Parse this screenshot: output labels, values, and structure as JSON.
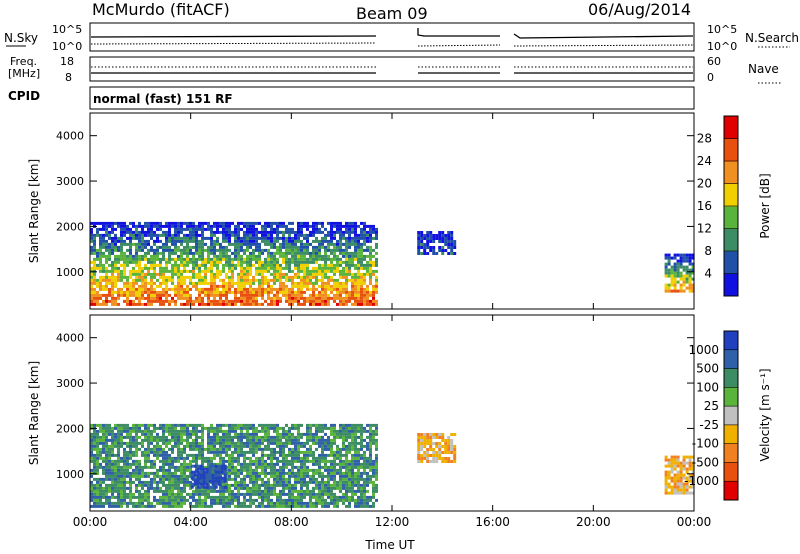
{
  "header": {
    "station": "McMurdo (fitACF)",
    "beam": "Beam 09",
    "date": "06/Aug/2014"
  },
  "noise_panel": {
    "left_label": "N.Sky",
    "right_label": "N.Search",
    "left_ticks": [
      "10^5",
      "10^0"
    ],
    "right_ticks": [
      "10^5",
      "10^0"
    ]
  },
  "freq_panel": {
    "left_label": "Freq.",
    "left_unit": "[MHz]",
    "right_label": "Nave",
    "left_ticks": [
      "18",
      "8"
    ],
    "right_ticks": [
      "60",
      "0"
    ]
  },
  "cpid_panel": {
    "label": "CPID",
    "text": "normal (fast) 151 RF"
  },
  "chart_data": [
    {
      "type": "heatmap",
      "title": "",
      "ylabel": "Slant Range [km]",
      "xlabel": "",
      "ylim": [
        180,
        4500
      ],
      "yticks": [
        "1000",
        "2000",
        "3000",
        "4000"
      ],
      "colorbar": {
        "label": "Power [dB]",
        "ticks": [
          "4",
          "8",
          "12",
          "16",
          "20",
          "24",
          "28"
        ],
        "colors": [
          "#1010e0",
          "#2050a8",
          "#3c8c64",
          "#5ab43c",
          "#f0d000",
          "#f09020",
          "#e85010",
          "#e00000"
        ]
      },
      "series": [
        {
          "x_start": "00:00",
          "x_end": "11:20",
          "y_low": 300,
          "y_high": 2100,
          "level": "28"
        },
        {
          "x_start": "13:00",
          "x_end": "14:30",
          "y_low": 1400,
          "y_high": 1900,
          "level": "8"
        },
        {
          "x_start": "22:50",
          "x_end": "24:00",
          "y_low": 600,
          "y_high": 1400,
          "level": "24"
        }
      ]
    },
    {
      "type": "heatmap",
      "title": "",
      "ylabel": "Slant Range [km]",
      "xlabel": "Time UT",
      "ylim": [
        180,
        4500
      ],
      "yticks": [
        "1000",
        "2000",
        "3000",
        "4000"
      ],
      "xticks": [
        "00:00",
        "04:00",
        "08:00",
        "12:00",
        "16:00",
        "20:00",
        "00:00"
      ],
      "colorbar": {
        "label": "Velocity [m s⁻¹]",
        "ticks": [
          "1000",
          "500",
          "100",
          "25",
          "-25",
          "-100",
          "-500",
          "-1000"
        ],
        "colors": [
          "#2040c0",
          "#3060a8",
          "#3c8c64",
          "#5ab43c",
          "#c0c0c0",
          "#f0b000",
          "#f08020",
          "#e85010",
          "#e00000"
        ]
      },
      "series": [
        {
          "x_start": "00:00",
          "x_end": "11:20",
          "y_low": 300,
          "y_high": 2100,
          "level": "100"
        },
        {
          "x_start": "04:00",
          "x_end": "05:20",
          "y_low": 700,
          "y_high": 1200,
          "level": "1000"
        },
        {
          "x_start": "13:00",
          "x_end": "14:30",
          "y_low": 1300,
          "y_high": 1900,
          "level": "-100"
        },
        {
          "x_start": "22:50",
          "x_end": "24:00",
          "y_low": 600,
          "y_high": 1400,
          "level": "-100"
        }
      ]
    }
  ]
}
